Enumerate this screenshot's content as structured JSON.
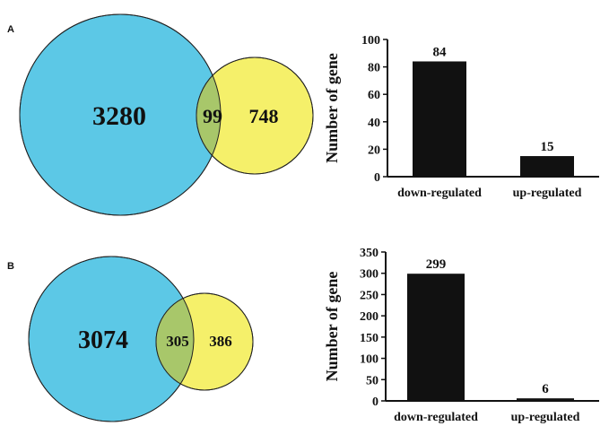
{
  "panels": [
    {
      "label": "A",
      "venn": {
        "left_only": "3280",
        "overlap": "99",
        "right_only": "748"
      }
    },
    {
      "label": "B",
      "venn": {
        "left_only": "3074",
        "overlap": "305",
        "right_only": "386"
      }
    }
  ],
  "colors": {
    "left_circle": "#5cc8e6",
    "right_circle": "#f5f06a",
    "overlap": "#a8c76a",
    "bar": "#111111"
  },
  "chart_data": [
    {
      "type": "bar",
      "categories": [
        "down-regulated",
        "up-regulated"
      ],
      "values": [
        84,
        15
      ],
      "data_labels": [
        "84",
        "15"
      ],
      "ylabel": "Number of gene",
      "ylim": [
        0,
        100
      ],
      "yticks": [
        "0",
        "20",
        "40",
        "60",
        "80",
        "100"
      ],
      "grid": false
    },
    {
      "type": "bar",
      "categories": [
        "down-regulated",
        "up-regulated"
      ],
      "values": [
        299,
        6
      ],
      "data_labels": [
        "299",
        "6"
      ],
      "ylabel": "Number of gene",
      "ylim": [
        0,
        350
      ],
      "yticks": [
        "0",
        "50",
        "100",
        "150",
        "200",
        "250",
        "300",
        "350"
      ],
      "grid": false
    }
  ]
}
